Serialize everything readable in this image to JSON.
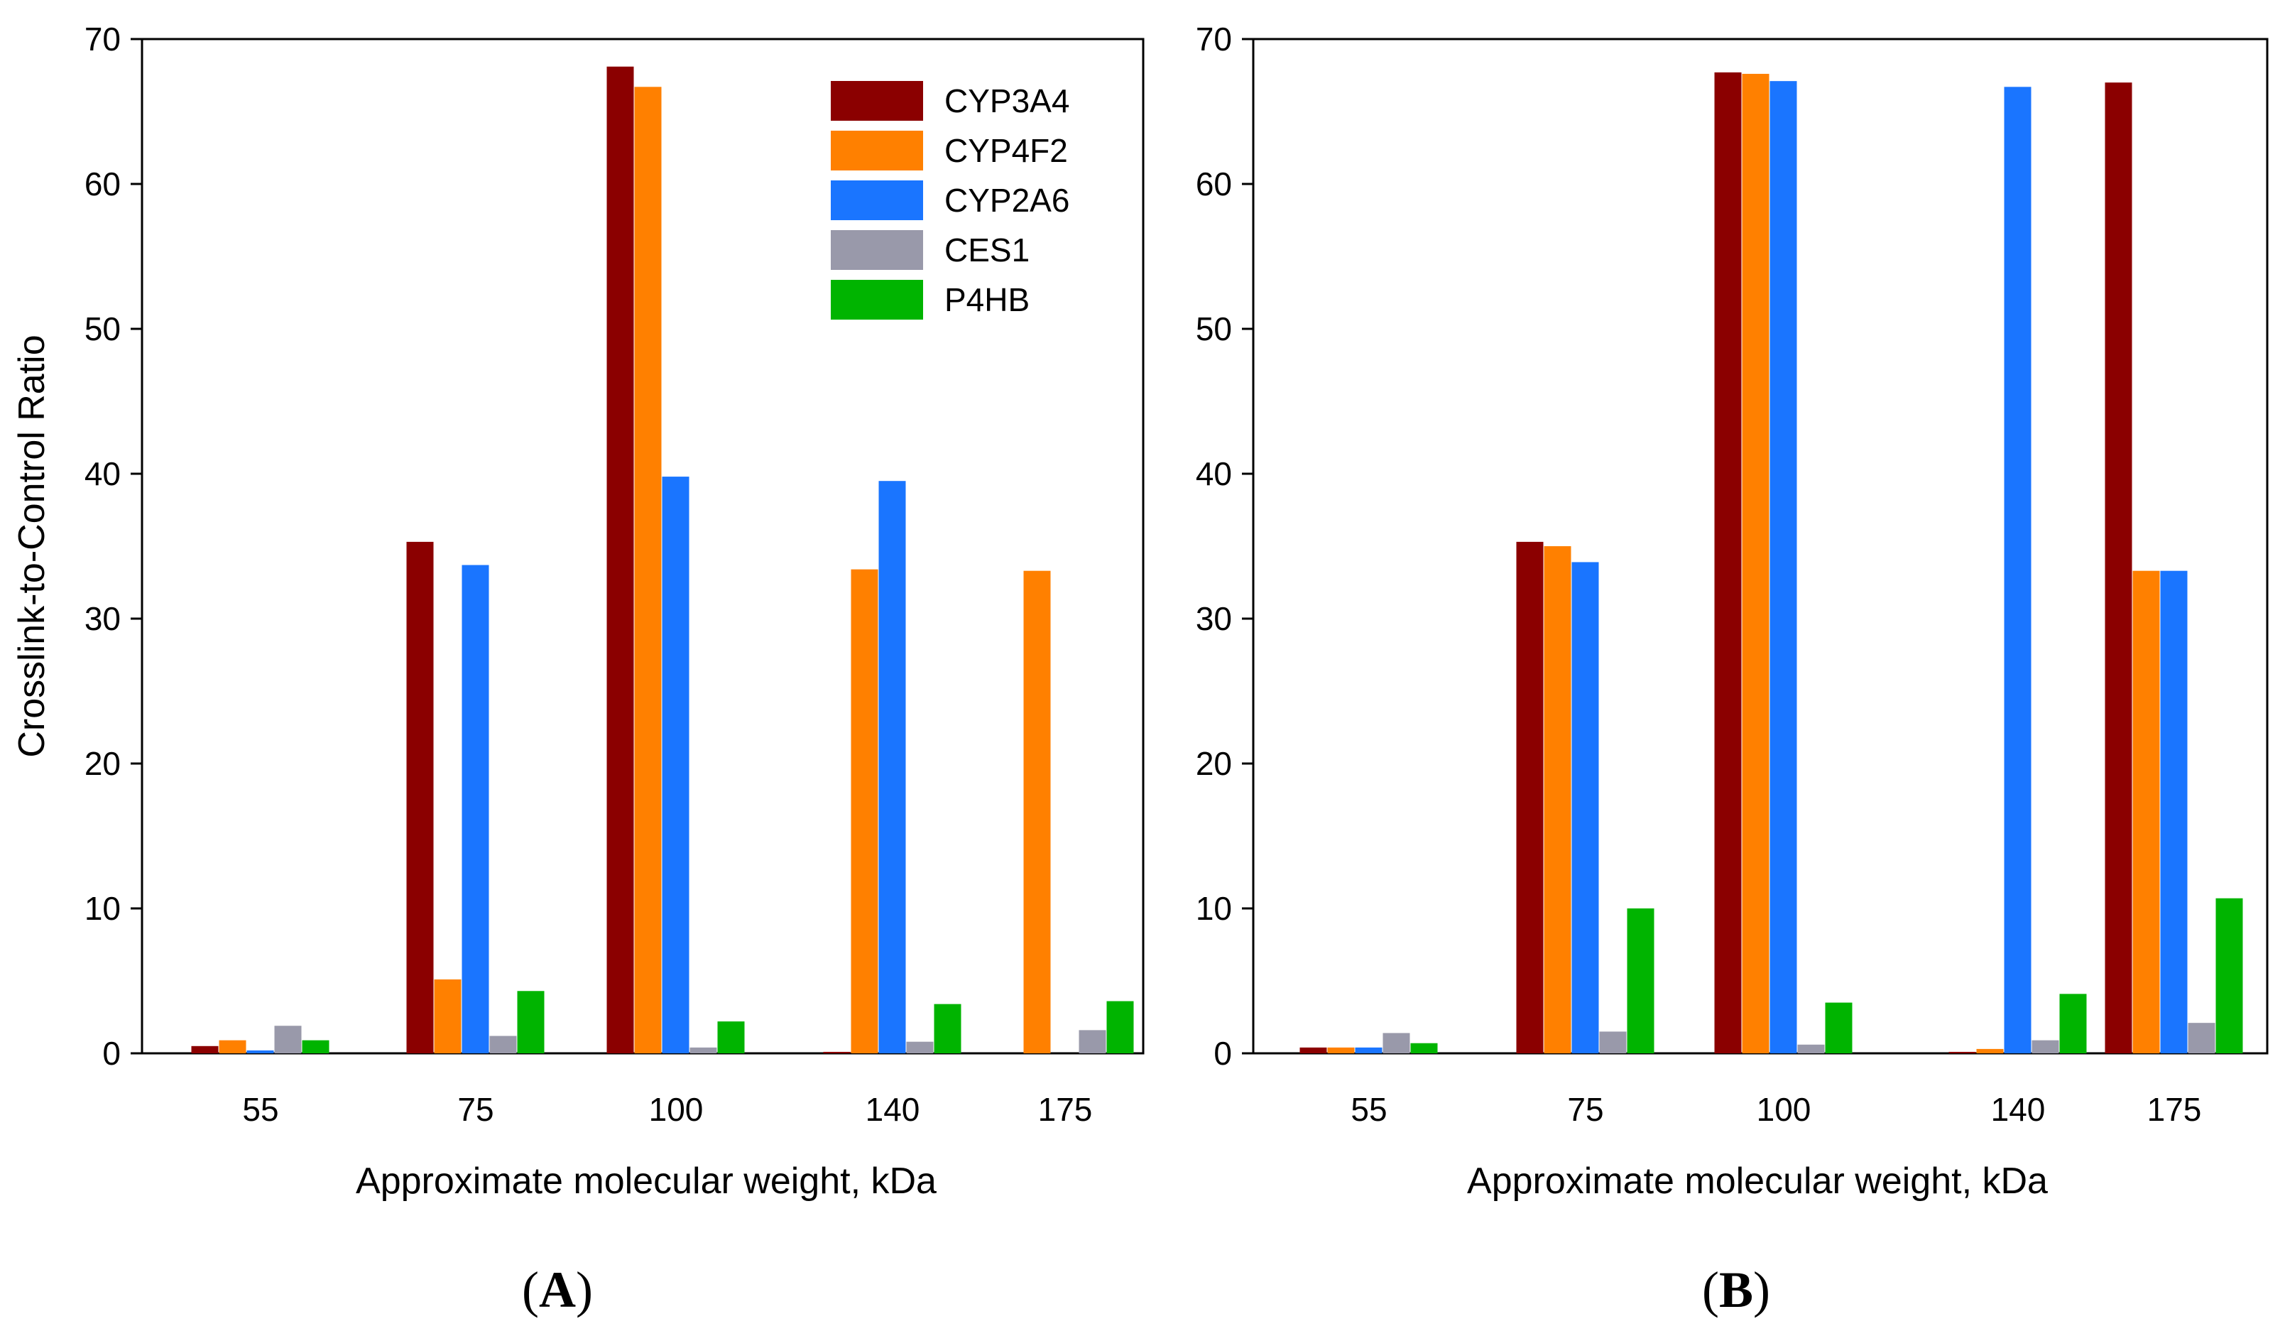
{
  "figure": {
    "panel_labels": [
      "A",
      "B"
    ],
    "shared_ylabel": "Crosslink-to-Control Ratio"
  },
  "colors": {
    "CYP3A4": "#8B0000",
    "CYP4F2": "#FF8000",
    "CYP2A6": "#1A75FF",
    "CES1": "#9999AA",
    "P4HB": "#00B400"
  },
  "chart_data": [
    {
      "type": "bar",
      "panel": "A",
      "title": "",
      "xlabel": "Approximate molecular weight, kDa",
      "ylabel": "Crosslink-to-Control Ratio",
      "categories": [
        "55",
        "75",
        "100",
        "140",
        "175"
      ],
      "ylim": [
        0,
        70
      ],
      "yticks": [
        0,
        10,
        20,
        30,
        40,
        50,
        60,
        70
      ],
      "legend": {
        "position": "top-right",
        "entries": [
          "CYP3A4",
          "CYP4F2",
          "CYP2A6",
          "CES1",
          "P4HB"
        ]
      },
      "series": [
        {
          "name": "CYP3A4",
          "values": [
            0.5,
            35.3,
            68.1,
            0.1,
            0
          ]
        },
        {
          "name": "CYP4F2",
          "values": [
            0.9,
            5.1,
            66.7,
            33.4,
            33.3
          ]
        },
        {
          "name": "CYP2A6",
          "values": [
            0.2,
            33.7,
            39.8,
            39.5,
            0
          ]
        },
        {
          "name": "CES1",
          "values": [
            1.9,
            1.2,
            0.4,
            0.8,
            1.6
          ]
        },
        {
          "name": "P4HB",
          "values": [
            0.9,
            4.3,
            2.2,
            3.4,
            3.6
          ]
        }
      ]
    },
    {
      "type": "bar",
      "panel": "B",
      "title": "",
      "xlabel": "Approximate molecular weight, kDa",
      "ylabel": "",
      "categories": [
        "55",
        "75",
        "100",
        "140",
        "175"
      ],
      "ylim": [
        0,
        70
      ],
      "yticks": [
        0,
        10,
        20,
        30,
        40,
        50,
        60,
        70
      ],
      "series": [
        {
          "name": "CYP3A4",
          "values": [
            0.4,
            35.3,
            67.7,
            0.1,
            67.0
          ]
        },
        {
          "name": "CYP4F2",
          "values": [
            0.4,
            35.0,
            67.6,
            0.3,
            33.3
          ]
        },
        {
          "name": "CYP2A6",
          "values": [
            0.4,
            33.9,
            67.1,
            66.7,
            33.3
          ]
        },
        {
          "name": "CES1",
          "values": [
            1.4,
            1.5,
            0.6,
            0.9,
            2.1
          ]
        },
        {
          "name": "P4HB",
          "values": [
            0.7,
            10.0,
            3.5,
            4.1,
            10.7
          ]
        }
      ]
    }
  ]
}
